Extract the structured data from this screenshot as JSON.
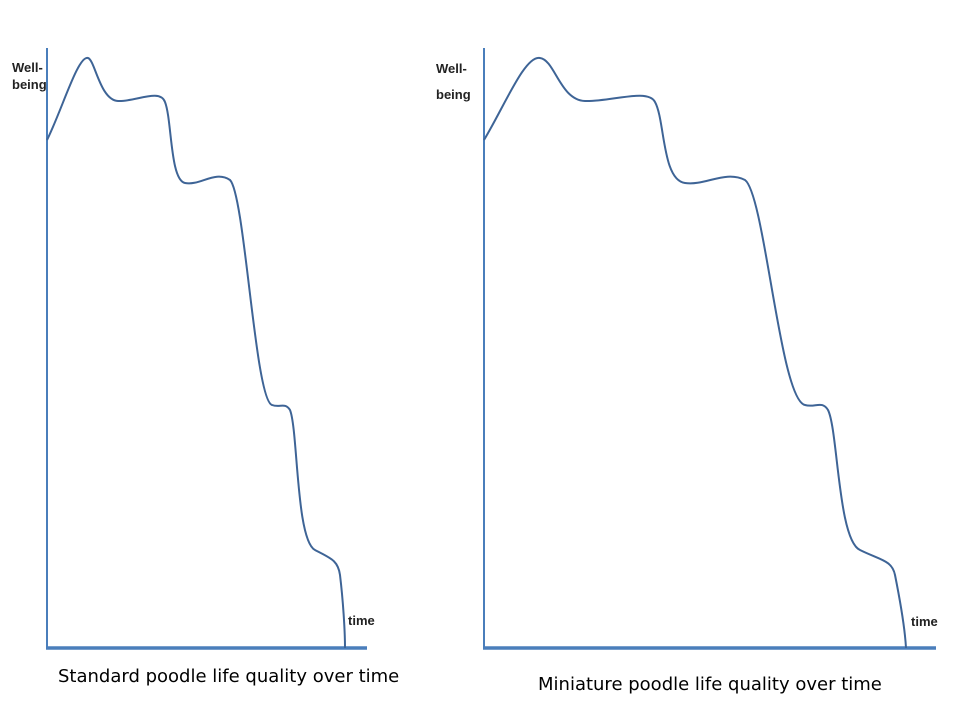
{
  "panels": [
    {
      "y_label_lines": [
        "Well-",
        "being"
      ],
      "x_label": "time",
      "caption": "Standard poodle life quality over time"
    },
    {
      "y_label_lines": [
        "Well-",
        "being"
      ],
      "x_label": "time",
      "caption": "Miniature poodle life quality over time"
    }
  ]
}
